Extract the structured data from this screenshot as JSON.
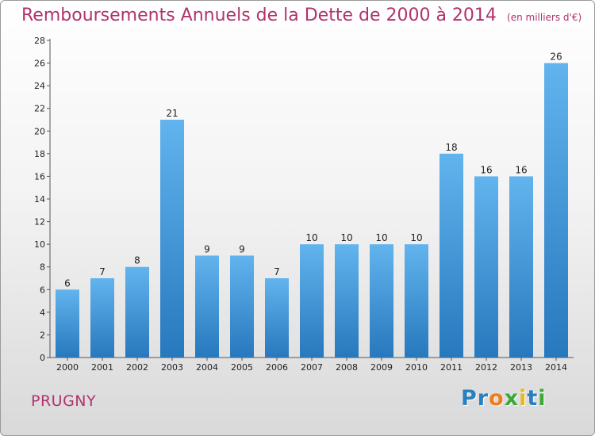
{
  "chart_data": {
    "type": "bar",
    "title": "Remboursements Annuels de la Dette de 2000 à 2014",
    "subtitle": "(en milliers d'€)",
    "categories": [
      "2000",
      "2001",
      "2002",
      "2003",
      "2004",
      "2005",
      "2006",
      "2007",
      "2008",
      "2009",
      "2010",
      "2011",
      "2012",
      "2013",
      "2014"
    ],
    "values": [
      6,
      7,
      8,
      21,
      9,
      9,
      7,
      10,
      10,
      10,
      10,
      18,
      16,
      16,
      26
    ],
    "ylim": [
      0,
      28
    ],
    "yticks": [
      0,
      2,
      4,
      6,
      8,
      10,
      12,
      14,
      16,
      18,
      20,
      22,
      24,
      26,
      28
    ],
    "xlabel": "",
    "ylabel": "",
    "grid": false,
    "bar_color": "#3a8fd6"
  },
  "footer": {
    "commune": "PRUGNY",
    "logo_letters": [
      {
        "ch": "P",
        "color": "#2a7fc0"
      },
      {
        "ch": "r",
        "color": "#2a7fc0"
      },
      {
        "ch": "o",
        "color": "#f07d1a"
      },
      {
        "ch": "x",
        "color": "#3aaa35"
      },
      {
        "ch": "i",
        "color": "#e6b91e"
      },
      {
        "ch": "t",
        "color": "#2a7fc0"
      },
      {
        "ch": "i",
        "color": "#3aaa35"
      }
    ]
  },
  "colors": {
    "title": "#b0336c",
    "axis": "#555555"
  }
}
